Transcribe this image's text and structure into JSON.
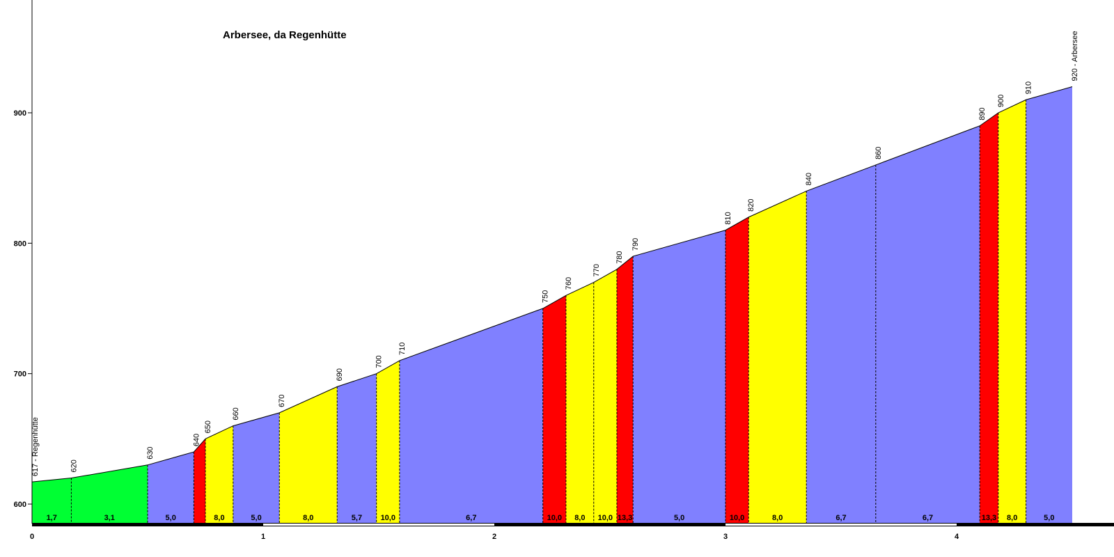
{
  "chart_data": {
    "type": "area",
    "title": "Arbersee, da Regenhütte",
    "xlabel": "",
    "ylabel": "",
    "xlim": [
      0,
      4.8
    ],
    "ylim": [
      590,
      990
    ],
    "x_ticks": [
      "0",
      "1",
      "2",
      "3",
      "4"
    ],
    "y_ticks": [
      "600",
      "700",
      "800",
      "900"
    ],
    "grid": false,
    "start_label": "617 - Regenhütte",
    "end_label": "920 - Arbersee",
    "points": [
      {
        "x": 0.0,
        "alt": 617
      },
      {
        "x": 0.17,
        "alt": 620
      },
      {
        "x": 0.5,
        "alt": 630
      },
      {
        "x": 0.7,
        "alt": 640
      },
      {
        "x": 0.75,
        "alt": 650
      },
      {
        "x": 0.87,
        "alt": 660
      },
      {
        "x": 1.07,
        "alt": 670
      },
      {
        "x": 1.32,
        "alt": 690
      },
      {
        "x": 1.49,
        "alt": 700
      },
      {
        "x": 1.59,
        "alt": 710
      },
      {
        "x": 2.21,
        "alt": 750
      },
      {
        "x": 2.31,
        "alt": 760
      },
      {
        "x": 2.43,
        "alt": 770
      },
      {
        "x": 2.53,
        "alt": 780
      },
      {
        "x": 2.6,
        "alt": 790
      },
      {
        "x": 3.0,
        "alt": 810
      },
      {
        "x": 3.1,
        "alt": 820
      },
      {
        "x": 3.35,
        "alt": 840
      },
      {
        "x": 3.65,
        "alt": 860
      },
      {
        "x": 4.1,
        "alt": 890
      },
      {
        "x": 4.18,
        "alt": 900
      },
      {
        "x": 4.3,
        "alt": 910
      },
      {
        "x": 4.5,
        "alt": 920
      }
    ],
    "segments": [
      {
        "gradient": "1,7",
        "color": "#00ff33"
      },
      {
        "gradient": "3,1",
        "color": "#00ff33"
      },
      {
        "gradient": "5,0",
        "color": "#8080ff"
      },
      {
        "gradient": "",
        "color": "#ff0000"
      },
      {
        "gradient": "8,0",
        "color": "#ffff00"
      },
      {
        "gradient": "5,0",
        "color": "#8080ff"
      },
      {
        "gradient": "8,0",
        "color": "#ffff00"
      },
      {
        "gradient": "5,7",
        "color": "#8080ff"
      },
      {
        "gradient": "10,0",
        "color": "#ffff00"
      },
      {
        "gradient": "6,7",
        "color": "#8080ff"
      },
      {
        "gradient": "10,0",
        "color": "#ff0000"
      },
      {
        "gradient": "8,0",
        "color": "#ffff00"
      },
      {
        "gradient": "10,0",
        "color": "#ffff00"
      },
      {
        "gradient": "13,3",
        "color": "#ff0000"
      },
      {
        "gradient": "5,0",
        "color": "#8080ff"
      },
      {
        "gradient": "10,0",
        "color": "#ff0000"
      },
      {
        "gradient": "8,0",
        "color": "#ffff00"
      },
      {
        "gradient": "6,7",
        "color": "#8080ff"
      },
      {
        "gradient": "6,7",
        "color": "#8080ff"
      },
      {
        "gradient": "13,3",
        "color": "#ff0000"
      },
      {
        "gradient": "8,0",
        "color": "#ffff00"
      },
      {
        "gradient": "5,0",
        "color": "#8080ff"
      }
    ]
  }
}
